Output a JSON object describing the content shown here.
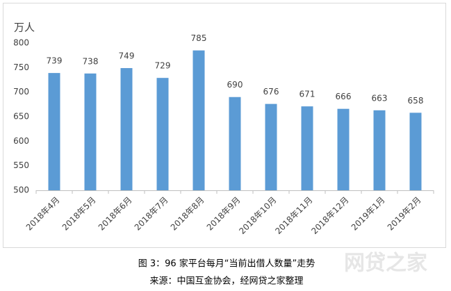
{
  "chart_data": {
    "type": "bar",
    "y_label": "万人",
    "categories": [
      "2018年4月",
      "2018年5月",
      "2018年6月",
      "2018年7月",
      "2018年8月",
      "2018年9月",
      "2018年10月",
      "2018年11月",
      "2018年12月",
      "2019年1月",
      "2019年2月"
    ],
    "values": [
      739,
      738,
      749,
      729,
      785,
      690,
      676,
      671,
      666,
      663,
      658
    ],
    "color": "#5b9bd5",
    "ylim": [
      500,
      800
    ],
    "yticks": [
      500,
      550,
      600,
      650,
      700,
      750,
      800
    ],
    "grid": false,
    "caption": "图 3：96 家平台每月“当前出借人数量”走势",
    "source": "来源：中国互金协会，经网贷之家整理",
    "watermark": "网贷之家"
  }
}
